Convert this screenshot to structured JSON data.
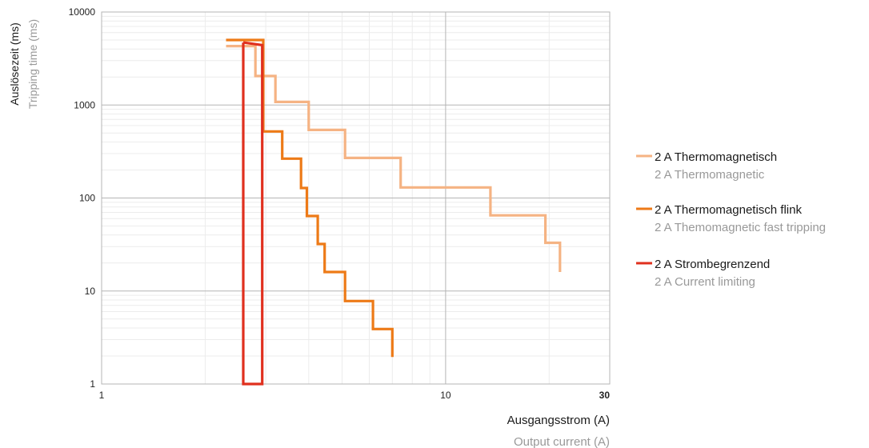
{
  "chart_data": {
    "type": "line",
    "x_scale": "log",
    "y_scale": "log",
    "xlim": [
      1,
      30
    ],
    "ylim": [
      1,
      10000
    ],
    "grid": true,
    "legend_position": "right",
    "x_ticks": [
      {
        "value": 1,
        "label": "1",
        "bold": false
      },
      {
        "value": 10,
        "label": "10",
        "bold": false
      },
      {
        "value": 30,
        "label": "30",
        "bold": true
      }
    ],
    "y_ticks": [
      {
        "value": 1,
        "label": "1"
      },
      {
        "value": 10,
        "label": "10"
      },
      {
        "value": 100,
        "label": "100"
      },
      {
        "value": 1000,
        "label": "1000"
      },
      {
        "value": 10000,
        "label": "10000"
      }
    ],
    "xlabel": "Ausgangsstrom (A)",
    "xlabel_en": "Output current (A)",
    "ylabel": "Auslösezeit (ms)",
    "ylabel_en": "Tripping time (ms)",
    "series": [
      {
        "name": "2 A Thermomagnetisch",
        "name_en": "2 A Thermomagnetic",
        "color": "#f5b383",
        "points": [
          [
            2.3,
            4300
          ],
          [
            2.8,
            4300
          ],
          [
            2.8,
            2050
          ],
          [
            3.2,
            2050
          ],
          [
            3.2,
            1080
          ],
          [
            4.0,
            1080
          ],
          [
            4.0,
            540
          ],
          [
            5.1,
            540
          ],
          [
            5.1,
            270
          ],
          [
            7.4,
            270
          ],
          [
            7.4,
            130
          ],
          [
            13.5,
            130
          ],
          [
            13.5,
            65
          ],
          [
            19.5,
            65
          ],
          [
            19.5,
            33
          ],
          [
            21.5,
            33
          ],
          [
            21.5,
            16
          ]
        ]
      },
      {
        "name": "2 A Thermomagnetisch flink",
        "name_en": "2 A Themomagnetic fast tripping",
        "color": "#ed7a17",
        "points": [
          [
            2.3,
            5000
          ],
          [
            2.95,
            5000
          ],
          [
            2.95,
            520
          ],
          [
            3.35,
            520
          ],
          [
            3.35,
            265
          ],
          [
            3.8,
            265
          ],
          [
            3.8,
            128
          ],
          [
            3.95,
            128
          ],
          [
            3.95,
            64
          ],
          [
            4.25,
            64
          ],
          [
            4.25,
            32
          ],
          [
            4.45,
            32
          ],
          [
            4.45,
            16
          ],
          [
            5.1,
            16
          ],
          [
            5.1,
            7.8
          ],
          [
            6.15,
            7.8
          ],
          [
            6.15,
            3.9
          ],
          [
            7.0,
            3.9
          ],
          [
            7.0,
            1.95
          ]
        ]
      },
      {
        "name": "2 A Strombegrenzend",
        "name_en": "2 A Current limiting",
        "color": "#e0301e",
        "points": [
          [
            2.58,
            4700
          ],
          [
            2.58,
            1
          ],
          [
            2.93,
            1
          ],
          [
            2.93,
            4400
          ],
          [
            2.58,
            4700
          ]
        ]
      }
    ]
  }
}
